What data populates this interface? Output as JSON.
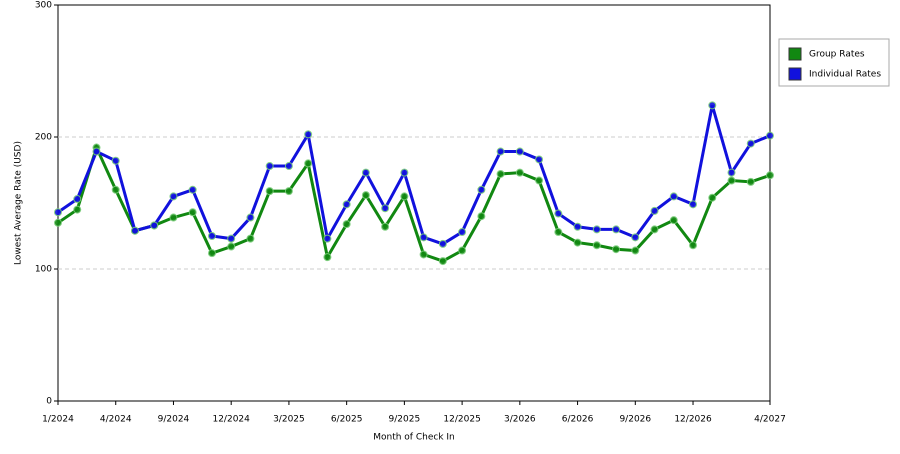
{
  "chart_data": {
    "type": "line",
    "x_label": "Month of Check In",
    "y_label": "Lowest Average Rate (USD)",
    "categories": [
      "1/2024",
      null,
      null,
      "4/2024",
      null,
      null,
      "9/2024",
      null,
      null,
      "12/2024",
      null,
      null,
      "3/2025",
      null,
      null,
      "6/2025",
      null,
      null,
      "9/2025",
      null,
      null,
      "12/2025",
      null,
      null,
      "3/2026",
      null,
      null,
      "6/2026",
      null,
      null,
      "9/2026",
      null,
      null,
      "12/2026",
      null,
      null,
      null,
      "4/2027"
    ],
    "series": [
      {
        "name": "Group Rates",
        "color": "#118811",
        "values": [
          135,
          145,
          192,
          160,
          129,
          133,
          139,
          143,
          112,
          117,
          123,
          159,
          159,
          180,
          109,
          134,
          156,
          132,
          155,
          111,
          106,
          114,
          140,
          172,
          173,
          167,
          128,
          120,
          118,
          115,
          114,
          130,
          137,
          118,
          154,
          167,
          166,
          171
        ]
      },
      {
        "name": "Individual Rates",
        "color": "#1111dd",
        "values": [
          143,
          153,
          189,
          182,
          129,
          133,
          155,
          160,
          125,
          123,
          139,
          178,
          178,
          202,
          123,
          149,
          173,
          146,
          173,
          124,
          119,
          128,
          160,
          189,
          189,
          183,
          142,
          132,
          130,
          130,
          124,
          144,
          155,
          149,
          224,
          173,
          195,
          201
        ]
      }
    ],
    "ylim": [
      0,
      300
    ],
    "yticks": [
      0,
      100,
      200,
      300
    ],
    "grid": true,
    "legend": "right"
  }
}
